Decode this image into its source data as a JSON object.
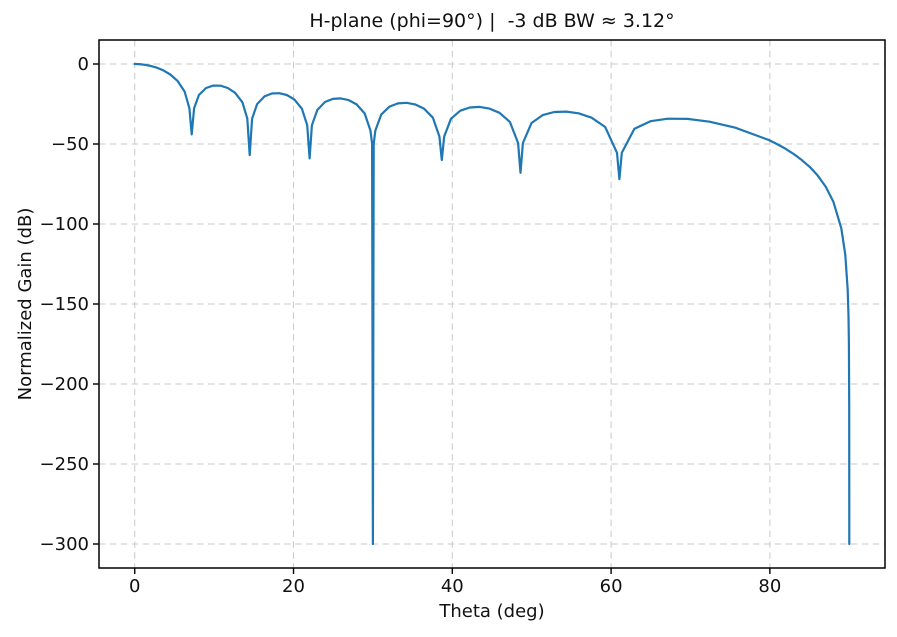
{
  "chart_data": {
    "type": "line",
    "title": "H-plane (phi=90°) |  -3 dB BW ≈ 3.12°",
    "xlabel": "Theta (deg)",
    "ylabel": "Normalized Gain (dB)",
    "xlim": [
      -4.5,
      94.5
    ],
    "ylim": [
      -315,
      15
    ],
    "xtick_values": [
      0,
      20,
      40,
      60,
      80
    ],
    "xtick_labels": [
      "0",
      "20",
      "40",
      "60",
      "80"
    ],
    "ytick_values": [
      0,
      -50,
      -100,
      -150,
      -200,
      -250,
      -300
    ],
    "ytick_labels": [
      "0",
      "−50",
      "−100",
      "−150",
      "−200",
      "−250",
      "−300"
    ],
    "grid": true,
    "grid_color": "#c9c9c9",
    "line_color": "#1f77b4",
    "background": "#ffffff",
    "legend": null,
    "beamwidth_3db_deg": 3.12,
    "floor_db": -300,
    "annotations": {
      "nulls_deg": [
        7.18,
        14.48,
        22.02,
        30.0,
        38.68,
        48.59,
        61.04,
        90.0
      ],
      "null_plotted_depths_db": [
        -44,
        -57,
        -59,
        -300,
        -60,
        -68,
        -72,
        -300
      ],
      "sidelobe_peaks": [
        {
          "theta_deg": 10.8,
          "gain_db": -13.5
        },
        {
          "theta_deg": 18.2,
          "gain_db": -18.2
        },
        {
          "theta_deg": 25.9,
          "gain_db": -21.5
        },
        {
          "theta_deg": 34.2,
          "gain_db": -24.2
        },
        {
          "theta_deg": 43.4,
          "gain_db": -26.8
        },
        {
          "theta_deg": 54.3,
          "gain_db": -29.7
        },
        {
          "theta_deg": 67.5,
          "gain_db": -33.5
        }
      ]
    },
    "series": [
      {
        "name": "H-plane normalized gain",
        "x": [
          0,
          0.45,
          0.9,
          1.79,
          2.69,
          3.58,
          4.48,
          5.38,
          6.28,
          6.88,
          7.18,
          7.48,
          8.08,
          8.99,
          9.9,
          10.81,
          11.72,
          12.64,
          13.56,
          14.18,
          14.48,
          14.78,
          15.41,
          16.34,
          17.27,
          18.21,
          19.15,
          20.1,
          21.06,
          21.72,
          22.02,
          22.32,
          22.99,
          23.97,
          24.95,
          25.94,
          26.95,
          27.95,
          28.97,
          29.7,
          29.9,
          30,
          30.1,
          30.3,
          31.04,
          32.09,
          33.15,
          34.23,
          35.32,
          36.43,
          37.55,
          38.38,
          38.68,
          38.98,
          39.84,
          41.01,
          42.21,
          43.43,
          44.68,
          45.95,
          47.25,
          48.29,
          48.59,
          48.89,
          49.97,
          51.38,
          52.84,
          54.34,
          55.91,
          57.54,
          59.26,
          60.75,
          61.05,
          61.35,
          62.94,
          64.96,
          67.14,
          69.64,
          72.39,
          75.66,
          79.86,
          81,
          82,
          83,
          84,
          85,
          86,
          87,
          88,
          89,
          89.5,
          89.8,
          89.9,
          89.95,
          89.99,
          90
        ],
        "y": [
          0,
          -0.06,
          -0.22,
          -0.92,
          -2.12,
          -3.94,
          -6.57,
          -10.48,
          -17.16,
          -27.7,
          -44,
          -27.7,
          -19.37,
          -14.97,
          -13.5,
          -13.58,
          -14.99,
          -17.98,
          -23.93,
          -34.1,
          -57,
          -34.1,
          -25.07,
          -20.27,
          -18.45,
          -18.24,
          -19.39,
          -22.15,
          -27.91,
          -38.25,
          -59,
          -38.25,
          -28.72,
          -23.78,
          -21.84,
          -21.52,
          -22.57,
          -25.24,
          -30.92,
          -41.7,
          -50,
          -300,
          -50,
          -41.7,
          -31.6,
          -26.6,
          -24.61,
          -24.25,
          -25.26,
          -27.9,
          -33.56,
          -45.3,
          -60,
          -45.3,
          -34.2,
          -29.19,
          -27.19,
          -26.84,
          -27.86,
          -30.52,
          -36.19,
          -49.4,
          -68,
          -49.4,
          -36.9,
          -31.94,
          -30,
          -29.72,
          -30.83,
          -33.59,
          -39.4,
          -55.5,
          -72,
          -55.5,
          -40.47,
          -35.77,
          -34.16,
          -34.32,
          -36.06,
          -39.82,
          -47.52,
          -50.3,
          -53.09,
          -56.25,
          -59.92,
          -64.27,
          -69.59,
          -76.47,
          -86.15,
          -102.68,
          -119.27,
          -141.18,
          -157.73,
          -174.29,
          -212.73,
          -300
        ]
      }
    ]
  }
}
